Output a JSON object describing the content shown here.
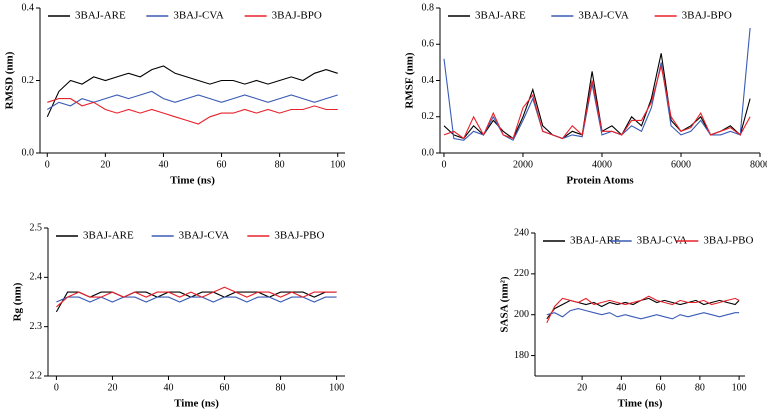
{
  "chart_data": [
    {
      "type": "line",
      "ylabel": "RMSD (nm)",
      "xlabel": "Time (ns)",
      "x": [
        0,
        4,
        8,
        12,
        16,
        20,
        24,
        28,
        32,
        36,
        40,
        44,
        48,
        52,
        56,
        60,
        64,
        68,
        72,
        76,
        80,
        84,
        88,
        92,
        96,
        100
      ],
      "xlim": [
        -2.5,
        102.5
      ],
      "xticks": [
        0,
        20,
        40,
        60,
        80,
        100
      ],
      "ylim": [
        0,
        0.4
      ],
      "yticks": [
        {
          "value": 0,
          "label": "0.0"
        },
        0.2,
        0.4
      ],
      "series": [
        {
          "name": "3BAJ-ARE",
          "color": "#000000",
          "values": [
            0.1,
            0.17,
            0.2,
            0.19,
            0.21,
            0.2,
            0.21,
            0.22,
            0.21,
            0.23,
            0.24,
            0.22,
            0.21,
            0.2,
            0.19,
            0.2,
            0.2,
            0.19,
            0.2,
            0.19,
            0.2,
            0.21,
            0.2,
            0.22,
            0.23,
            0.22
          ]
        },
        {
          "name": "3BAJ-CVA",
          "color": "#3a5bb5",
          "values": [
            0.12,
            0.14,
            0.13,
            0.15,
            0.14,
            0.15,
            0.16,
            0.15,
            0.16,
            0.17,
            0.15,
            0.14,
            0.15,
            0.16,
            0.15,
            0.14,
            0.15,
            0.16,
            0.15,
            0.14,
            0.15,
            0.16,
            0.15,
            0.14,
            0.15,
            0.16
          ]
        },
        {
          "name": "3BAJ-BPO",
          "color": "#e8202a",
          "values": [
            0.14,
            0.15,
            0.15,
            0.13,
            0.14,
            0.12,
            0.11,
            0.12,
            0.11,
            0.12,
            0.11,
            0.1,
            0.09,
            0.08,
            0.1,
            0.11,
            0.11,
            0.12,
            0.11,
            0.12,
            0.11,
            0.12,
            0.12,
            0.13,
            0.12,
            0.12
          ]
        }
      ]
    },
    {
      "type": "line",
      "ylabel": "RMSF (nm)",
      "xlabel": "Protein Atoms",
      "x": [
        0,
        250,
        500,
        750,
        1000,
        1250,
        1500,
        1750,
        2000,
        2250,
        2500,
        2750,
        3000,
        3250,
        3500,
        3750,
        4000,
        4250,
        4500,
        4750,
        5000,
        5250,
        5500,
        5750,
        6000,
        6250,
        6500,
        6750,
        7000,
        7250,
        7500,
        7750
      ],
      "xlim": [
        -100,
        8000
      ],
      "xticks": [
        0,
        2000,
        4000,
        6000,
        8000
      ],
      "ylim": [
        0,
        0.8
      ],
      "yticks": [
        {
          "value": 0,
          "label": "0.0"
        },
        0.2,
        0.4,
        0.6,
        0.8
      ],
      "series": [
        {
          "name": "3BAJ-ARE",
          "color": "#000000",
          "values": [
            0.15,
            0.1,
            0.08,
            0.15,
            0.1,
            0.18,
            0.12,
            0.08,
            0.2,
            0.35,
            0.15,
            0.1,
            0.08,
            0.12,
            0.1,
            0.45,
            0.12,
            0.15,
            0.1,
            0.2,
            0.15,
            0.3,
            0.55,
            0.18,
            0.12,
            0.15,
            0.2,
            0.1,
            0.12,
            0.15,
            0.1,
            0.3
          ]
        },
        {
          "name": "3BAJ-CVA",
          "color": "#3a5bb5",
          "values": [
            0.52,
            0.08,
            0.07,
            0.12,
            0.1,
            0.2,
            0.1,
            0.07,
            0.18,
            0.3,
            0.12,
            0.1,
            0.08,
            0.1,
            0.09,
            0.38,
            0.1,
            0.12,
            0.1,
            0.15,
            0.12,
            0.25,
            0.5,
            0.15,
            0.1,
            0.12,
            0.18,
            0.1,
            0.1,
            0.12,
            0.1,
            0.69
          ]
        },
        {
          "name": "3BAJ-BPO",
          "color": "#e8202a",
          "values": [
            0.1,
            0.12,
            0.08,
            0.2,
            0.1,
            0.22,
            0.1,
            0.08,
            0.25,
            0.32,
            0.12,
            0.1,
            0.08,
            0.15,
            0.1,
            0.4,
            0.12,
            0.12,
            0.1,
            0.18,
            0.18,
            0.28,
            0.48,
            0.2,
            0.12,
            0.14,
            0.22,
            0.1,
            0.12,
            0.14,
            0.1,
            0.2
          ]
        }
      ]
    },
    {
      "type": "line",
      "ylabel": "Rg (nm)",
      "xlabel": "Time (ns)",
      "x": [
        0,
        4,
        8,
        12,
        16,
        20,
        24,
        28,
        32,
        36,
        40,
        44,
        48,
        52,
        56,
        60,
        64,
        68,
        72,
        76,
        80,
        84,
        88,
        92,
        96,
        100
      ],
      "xlim": [
        -3,
        103
      ],
      "xticks": [
        0,
        20,
        40,
        60,
        80,
        100
      ],
      "ylim": [
        2.2,
        2.5
      ],
      "yticks": [
        2.2,
        2.3,
        2.4,
        2.5
      ],
      "series": [
        {
          "name": "3BAJ-ARE",
          "color": "#000000",
          "values": [
            2.33,
            2.37,
            2.37,
            2.36,
            2.37,
            2.37,
            2.36,
            2.37,
            2.37,
            2.36,
            2.37,
            2.37,
            2.36,
            2.37,
            2.37,
            2.36,
            2.37,
            2.37,
            2.37,
            2.36,
            2.37,
            2.37,
            2.37,
            2.36,
            2.37,
            2.37
          ]
        },
        {
          "name": "3BAJ-CVA",
          "color": "#3a5bb5",
          "values": [
            2.35,
            2.36,
            2.36,
            2.35,
            2.36,
            2.35,
            2.36,
            2.36,
            2.35,
            2.36,
            2.36,
            2.35,
            2.36,
            2.36,
            2.35,
            2.36,
            2.36,
            2.35,
            2.36,
            2.36,
            2.35,
            2.36,
            2.36,
            2.35,
            2.36,
            2.36
          ]
        },
        {
          "name": "3BAJ-PBO",
          "color": "#e8202a",
          "values": [
            2.34,
            2.36,
            2.37,
            2.36,
            2.36,
            2.37,
            2.36,
            2.37,
            2.36,
            2.37,
            2.37,
            2.36,
            2.37,
            2.36,
            2.37,
            2.38,
            2.37,
            2.36,
            2.37,
            2.37,
            2.36,
            2.37,
            2.36,
            2.37,
            2.37,
            2.37
          ]
        }
      ]
    },
    {
      "type": "line",
      "ylabel": "SASA (nm²)",
      "xlabel": "Time (ns)",
      "x": [
        2,
        6,
        10,
        14,
        18,
        22,
        26,
        30,
        34,
        38,
        42,
        46,
        50,
        54,
        58,
        62,
        66,
        70,
        74,
        78,
        82,
        86,
        90,
        94,
        98,
        100
      ],
      "xlim": [
        -4,
        103
      ],
      "xticks": [
        20,
        40,
        60,
        80,
        100
      ],
      "ylim": [
        170,
        240
      ],
      "yticks": [
        180,
        200,
        220,
        240
      ],
      "series": [
        {
          "name": "3BAJ-ARE",
          "color": "#000000",
          "values": [
            198,
            203,
            205,
            207,
            206,
            205,
            206,
            204,
            206,
            205,
            206,
            205,
            207,
            208,
            206,
            207,
            206,
            205,
            206,
            207,
            205,
            206,
            207,
            206,
            205,
            207
          ]
        },
        {
          "name": "3BAJ-CVA",
          "color": "#3a5bb5",
          "values": [
            200,
            201,
            199,
            202,
            203,
            202,
            201,
            200,
            201,
            199,
            200,
            199,
            198,
            199,
            200,
            199,
            198,
            200,
            199,
            200,
            201,
            200,
            199,
            200,
            201,
            201
          ]
        },
        {
          "name": "3BAJ-PBO",
          "color": "#e8202a",
          "values": [
            196,
            204,
            208,
            207,
            206,
            208,
            205,
            206,
            207,
            206,
            205,
            206,
            207,
            209,
            207,
            206,
            205,
            207,
            206,
            206,
            207,
            205,
            206,
            207,
            208,
            207
          ]
        }
      ]
    }
  ]
}
